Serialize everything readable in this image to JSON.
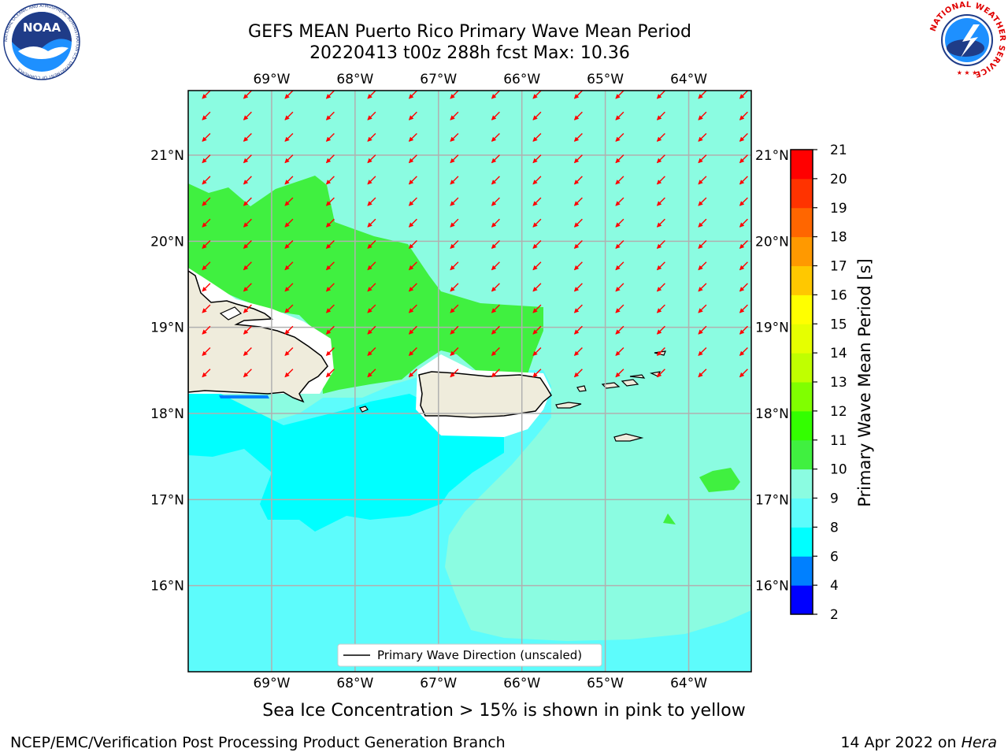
{
  "title": {
    "line1": "GEFS MEAN Puerto Rico Primary Wave Mean Period",
    "line2": "20220413 t00z 288h fcst   Max: 10.36"
  },
  "map": {
    "lon_labels": [
      "69°W",
      "68°W",
      "67°W",
      "66°W",
      "65°W",
      "64°W"
    ],
    "lat_labels": [
      "21°N",
      "20°N",
      "19°N",
      "18°N",
      "17°N",
      "16°N"
    ],
    "lon_range": [
      -70.0,
      -63.25
    ],
    "lat_range": [
      15.0,
      21.75
    ],
    "colors": {
      "land": "#efecdc",
      "coastline": "#000000",
      "grid": "#b0b0b0",
      "arrow": "#ff0000",
      "band_6_8": "#00ffff",
      "band_8_9": "#5dfcfc",
      "band_9_10": "#8bfce1",
      "band_10_11": "#40f040"
    },
    "arrow_direction_deg": 225,
    "legend_label": "Primary Wave Direction (unscaled)"
  },
  "colorbar": {
    "label": "Primary Wave Mean Period [s]",
    "ticks": [
      "2",
      "4",
      "6",
      "8",
      "9",
      "10",
      "11",
      "12",
      "13",
      "14",
      "15",
      "16",
      "17",
      "18",
      "19",
      "20",
      "21"
    ],
    "colors": [
      "#0000ff",
      "#0080ff",
      "#00ffff",
      "#5dfcfc",
      "#8bfce1",
      "#40f040",
      "#33ff00",
      "#80ff00",
      "#c0ff00",
      "#e6ff00",
      "#ffff00",
      "#ffc800",
      "#ff9900",
      "#ff6600",
      "#ff3300",
      "#ff0000"
    ]
  },
  "footer": {
    "caption": "Sea Ice Concentration > 15% is shown in pink to yellow",
    "credit": "NCEP/EMC/Verification Post Processing Product Generation Branch",
    "date_prefix": "14 Apr 2022 on ",
    "date_machine": "Hera"
  },
  "logos": {
    "noaa": "NOAA",
    "noaa_ring": "NATIONAL OCEANIC AND ATMOSPHERIC ADMINISTRATION U.S. DEPARTMENT OF COMMERCE",
    "nws_ring": "NATIONAL WEATHER SERVICE"
  }
}
